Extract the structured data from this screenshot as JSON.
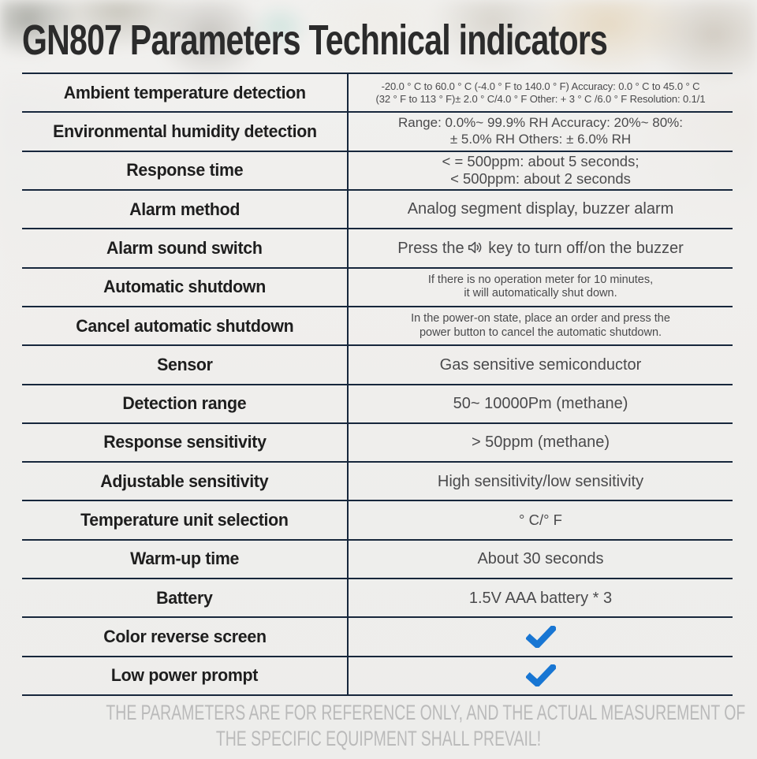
{
  "title": "GN807 Parameters Technical indicators",
  "colors": {
    "table_line": "#17273c",
    "check_blue": "#1876d3",
    "label_text": "#1e1e1e",
    "value_text": "#4a4a4c",
    "footer_text": "#bababa"
  },
  "table": {
    "rows": [
      {
        "id": "ambient-temperature-detection",
        "label": "Ambient temperature detection",
        "value": {
          "type": "lines",
          "size": "xs",
          "lines": [
            "-20.0 ° C to 60.0 ° C (-4.0 ° F to 140.0 ° F) Accuracy: 0.0 ° C to 45.0 ° C",
            "(32 ° F to 113 ° F)± 2.0 ° C/4.0 ° F Other: + 3 ° C /6.0 ° F Resolution: 0.1/1"
          ]
        }
      },
      {
        "id": "environmental-humidity-detection",
        "label": "Environmental humidity detection",
        "value": {
          "type": "lines",
          "size": "sm17",
          "lines": [
            "Range: 0.0%~ 99.9% RH Accuracy: 20%~ 80%:",
            "± 5.0% RH Others: ± 6.0% RH"
          ]
        }
      },
      {
        "id": "response-time",
        "label": "Response time",
        "value": {
          "type": "lines",
          "size": "md",
          "lines": [
            "< = 500ppm: about 5 seconds;",
            "< 500ppm: about 2 seconds"
          ]
        }
      },
      {
        "id": "alarm-method",
        "label": "Alarm method",
        "value": {
          "type": "lines",
          "size": "lg",
          "lines": [
            "Analog segment display, buzzer alarm"
          ]
        }
      },
      {
        "id": "alarm-sound-switch",
        "label": "Alarm sound switch",
        "value": {
          "type": "icon-text",
          "size": "lg",
          "prefix": "Press the",
          "icon": "speaker-sound-icon",
          "suffix": " key to turn off/on the buzzer"
        }
      },
      {
        "id": "automatic-shutdown",
        "label": "Automatic shutdown",
        "value": {
          "type": "lines",
          "size": "sm",
          "lines": [
            "If there is no operation meter for 10 minutes,",
            "it will automatically shut down."
          ]
        }
      },
      {
        "id": "cancel-automatic-shutdown",
        "label": "Cancel automatic shutdown",
        "value": {
          "type": "lines",
          "size": "sm",
          "lines": [
            "In the power-on state, place an order and press the",
            "power button to cancel the automatic shutdown."
          ]
        }
      },
      {
        "id": "sensor",
        "label": "Sensor",
        "value": {
          "type": "lines",
          "size": "lg",
          "lines": [
            "Gas sensitive semiconductor"
          ]
        }
      },
      {
        "id": "detection-range",
        "label": "Detection range",
        "value": {
          "type": "lines",
          "size": "lg",
          "lines": [
            "50~ 10000Pm (methane)"
          ]
        }
      },
      {
        "id": "response-sensitivity",
        "label": "Response sensitivity",
        "value": {
          "type": "lines",
          "size": "lg",
          "lines": [
            "> 50ppm (methane)"
          ]
        }
      },
      {
        "id": "adjustable-sensitivity",
        "label": "Adjustable sensitivity",
        "value": {
          "type": "lines",
          "size": "lg",
          "lines": [
            "High sensitivity/low sensitivity"
          ]
        }
      },
      {
        "id": "temperature-unit-selection",
        "label": "Temperature unit selection",
        "value": {
          "type": "lines",
          "size": "md",
          "lines": [
            "° C/° F"
          ]
        }
      },
      {
        "id": "warm-up-time",
        "label": "Warm-up time",
        "value": {
          "type": "lines",
          "size": "lg",
          "lines": [
            "About 30 seconds"
          ]
        }
      },
      {
        "id": "battery",
        "label": "Battery",
        "value": {
          "type": "lines",
          "size": "lg",
          "lines": [
            "1.5V AAA battery * 3"
          ]
        }
      },
      {
        "id": "color-reverse-screen",
        "label": "Color reverse screen",
        "value": {
          "type": "check",
          "icon": "check-icon"
        }
      },
      {
        "id": "low-power-prompt",
        "label": "Low power prompt",
        "value": {
          "type": "check",
          "icon": "check-icon"
        }
      }
    ]
  },
  "footer": {
    "line1": "THE PARAMETERS ARE FOR REFERENCE ONLY, AND THE ACTUAL MEASUREMENT OF",
    "line2": "THE SPECIFIC EQUIPMENT SHALL PREVAIL!"
  }
}
